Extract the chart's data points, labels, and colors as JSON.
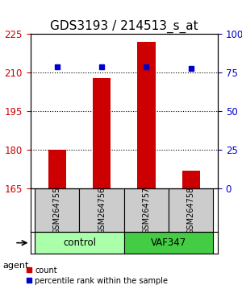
{
  "title": "GDS3193 / 214513_s_at",
  "samples": [
    "GSM264755",
    "GSM264756",
    "GSM264757",
    "GSM264758"
  ],
  "counts": [
    180,
    208,
    222,
    172
  ],
  "percentile_ranks": [
    79,
    79,
    79,
    78
  ],
  "y_min": 165,
  "y_max": 225,
  "y_ticks": [
    165,
    180,
    195,
    210,
    225
  ],
  "y_right_ticks": [
    0,
    25,
    50,
    75,
    100
  ],
  "y_right_labels": [
    "0",
    "25",
    "50",
    "75",
    "100%"
  ],
  "bar_color": "#cc0000",
  "dot_color": "#0000cc",
  "groups": [
    {
      "label": "control",
      "samples": [
        0,
        1
      ],
      "color": "#aaffaa"
    },
    {
      "label": "VAF347",
      "samples": [
        2,
        3
      ],
      "color": "#44cc44"
    }
  ],
  "agent_label": "agent",
  "legend_count_label": "count",
  "legend_percentile_label": "percentile rank within the sample",
  "bar_width": 0.4,
  "x_positions": [
    0,
    1,
    2,
    3
  ],
  "sample_box_color": "#cccccc",
  "title_fontsize": 11,
  "axis_label_fontsize": 9,
  "tick_fontsize": 8.5
}
